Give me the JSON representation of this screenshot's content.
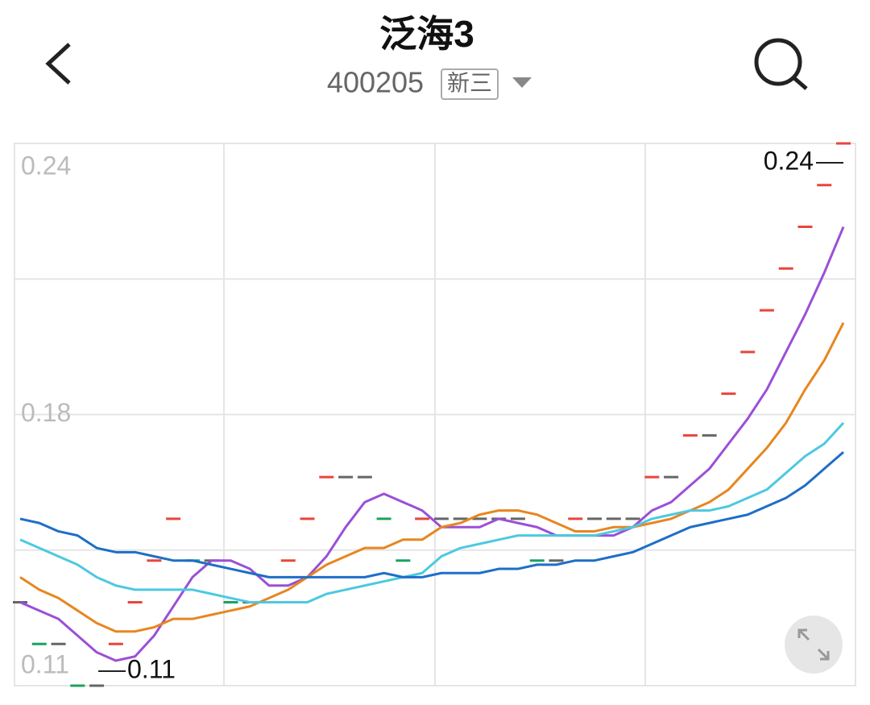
{
  "header": {
    "title": "泛海3",
    "code": "400205",
    "market": "新三"
  },
  "chart_data": {
    "type": "line",
    "ylim": [
      0.11,
      0.24
    ],
    "yticks": [
      0.24,
      {
        "value": 0.175,
        "label": "0.18"
      },
      0.11
    ],
    "ygrid": [
      0.24,
      0.2075,
      0.175,
      0.1425,
      0.11
    ],
    "grid": true,
    "values": [
      0.13,
      0.12,
      0.12,
      0.11,
      0.11,
      0.12,
      0.13,
      0.14,
      0.15,
      0.14,
      0.14,
      0.13,
      0.13,
      0.13,
      0.14,
      0.15,
      0.16,
      0.16,
      0.16,
      0.15,
      0.14,
      0.15,
      0.15,
      0.15,
      0.15,
      0.15,
      0.15,
      0.14,
      0.14,
      0.15,
      0.15,
      0.15,
      0.15,
      0.16,
      0.16,
      0.17,
      0.17,
      0.18,
      0.19,
      0.2,
      0.21,
      0.22,
      0.23,
      0.24
    ],
    "up_color": "#e8453c",
    "down_color": "#1aa260",
    "flat_color": "#666666",
    "series": [
      {
        "color": "#9b4fd6",
        "values": [
          0.13,
          0.128,
          0.126,
          0.122,
          0.118,
          0.116,
          0.117,
          0.122,
          0.129,
          0.136,
          0.14,
          0.14,
          0.138,
          0.134,
          0.134,
          0.136,
          0.141,
          0.148,
          0.154,
          0.156,
          0.154,
          0.152,
          0.148,
          0.148,
          0.148,
          0.15,
          0.149,
          0.148,
          0.146,
          0.146,
          0.146,
          0.146,
          0.148,
          0.152,
          0.154,
          0.158,
          0.162,
          0.168,
          0.174,
          0.181,
          0.19,
          0.199,
          0.209,
          0.22
        ]
      },
      {
        "color": "#e8861f",
        "values": [
          0.136,
          0.133,
          0.131,
          0.128,
          0.125,
          0.123,
          0.123,
          0.124,
          0.126,
          0.126,
          0.127,
          0.128,
          0.129,
          0.131,
          0.133,
          0.136,
          0.139,
          0.141,
          0.143,
          0.143,
          0.145,
          0.145,
          0.148,
          0.149,
          0.151,
          0.152,
          0.152,
          0.151,
          0.149,
          0.147,
          0.147,
          0.148,
          0.148,
          0.149,
          0.15,
          0.152,
          0.154,
          0.157,
          0.162,
          0.167,
          0.173,
          0.181,
          0.188,
          0.197
        ]
      },
      {
        "color": "#4cc9e0",
        "values": [
          0.145,
          0.143,
          0.141,
          0.139,
          0.136,
          0.134,
          0.133,
          0.133,
          0.133,
          0.133,
          0.132,
          0.131,
          0.13,
          0.13,
          0.13,
          0.13,
          0.132,
          0.133,
          0.134,
          0.135,
          0.136,
          0.137,
          0.141,
          0.143,
          0.144,
          0.145,
          0.146,
          0.146,
          0.146,
          0.146,
          0.146,
          0.147,
          0.148,
          0.15,
          0.151,
          0.152,
          0.152,
          0.153,
          0.155,
          0.157,
          0.161,
          0.165,
          0.168,
          0.173
        ]
      },
      {
        "color": "#1e6ec8",
        "values": [
          0.15,
          0.149,
          0.147,
          0.146,
          0.143,
          0.142,
          0.142,
          0.141,
          0.14,
          0.14,
          0.139,
          0.138,
          0.137,
          0.136,
          0.136,
          0.136,
          0.136,
          0.136,
          0.136,
          0.137,
          0.136,
          0.136,
          0.137,
          0.137,
          0.137,
          0.138,
          0.138,
          0.139,
          0.139,
          0.14,
          0.14,
          0.141,
          0.142,
          0.144,
          0.146,
          0.148,
          0.149,
          0.15,
          0.151,
          0.153,
          0.155,
          0.158,
          0.162,
          0.166
        ]
      }
    ],
    "max_label": 0.24,
    "min_label": 0.11
  }
}
